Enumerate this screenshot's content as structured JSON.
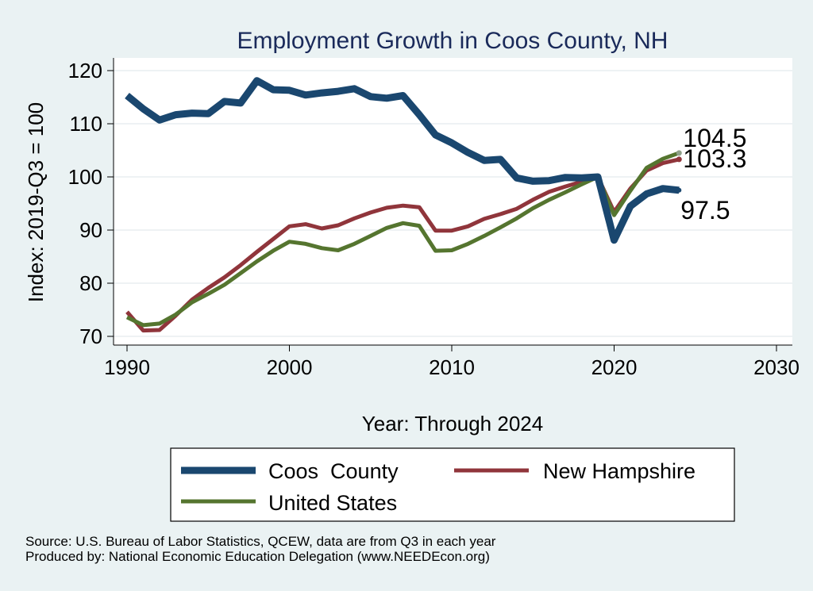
{
  "chart_data": {
    "type": "line",
    "title": "Employment Growth in Coos County, NH",
    "xlabel": "Year: Through 2024",
    "ylabel": "Index: 2019-Q3 = 100",
    "xlim": [
      1990,
      2030
    ],
    "ylim": [
      68,
      122
    ],
    "x_ticks": [
      1990,
      2000,
      2010,
      2020,
      2030
    ],
    "y_ticks": [
      70,
      80,
      90,
      100,
      110,
      120
    ],
    "grid": true,
    "legend_position": "bottom",
    "x": [
      1990,
      1991,
      1992,
      1993,
      1994,
      1995,
      1996,
      1997,
      1998,
      1999,
      2000,
      2001,
      2002,
      2003,
      2004,
      2005,
      2006,
      2007,
      2008,
      2009,
      2010,
      2011,
      2012,
      2013,
      2014,
      2015,
      2016,
      2017,
      2018,
      2019,
      2020,
      2021,
      2022,
      2023,
      2024
    ],
    "series": [
      {
        "name": "Coos  County",
        "color": "#1a476f",
        "values": [
          115.3,
          112.8,
          110.7,
          111.7,
          112.0,
          111.9,
          114.2,
          113.9,
          118.1,
          116.4,
          116.3,
          115.4,
          115.8,
          116.1,
          116.6,
          115.1,
          114.8,
          115.3,
          111.7,
          107.9,
          106.4,
          104.6,
          103.1,
          103.3,
          99.8,
          99.2,
          99.3,
          99.9,
          99.8,
          100.0,
          88.1,
          94.5,
          96.8,
          97.8,
          97.5
        ],
        "end_label": "97.5"
      },
      {
        "name": "New Hampshire",
        "color": "#90353b",
        "values": [
          74.6,
          71.1,
          71.2,
          73.9,
          76.9,
          79.1,
          81.1,
          83.4,
          85.9,
          88.3,
          90.7,
          91.1,
          90.3,
          90.9,
          92.2,
          93.3,
          94.2,
          94.6,
          94.3,
          89.9,
          89.9,
          90.7,
          92.1,
          93.0,
          94.0,
          95.7,
          97.2,
          98.2,
          99.1,
          100.0,
          93.4,
          97.8,
          101.2,
          102.6,
          103.3
        ],
        "end_label": "103.3"
      },
      {
        "name": "United States",
        "color": "#55752f",
        "values": [
          73.6,
          72.1,
          72.4,
          74.1,
          76.4,
          78.0,
          79.7,
          81.9,
          84.1,
          86.1,
          87.8,
          87.4,
          86.6,
          86.2,
          87.4,
          88.9,
          90.4,
          91.3,
          90.8,
          86.1,
          86.2,
          87.4,
          88.9,
          90.5,
          92.2,
          94.1,
          95.7,
          97.1,
          98.6,
          100.0,
          92.8,
          97.4,
          101.7,
          103.4,
          104.5
        ],
        "end_label": "104.5"
      }
    ]
  },
  "footer": {
    "source": "Source: U.S. Bureau of Labor Statistics, QCEW, data are from Q3 in each year",
    "produced": "Produced by: National Economic Education Delegation (www.NEEDEcon.org)"
  }
}
